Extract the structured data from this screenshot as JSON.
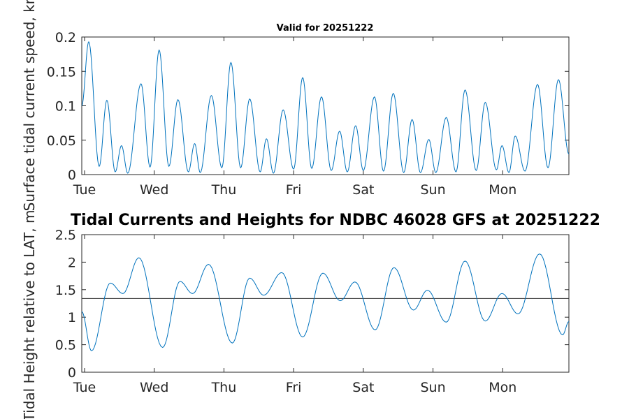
{
  "chart_data": [
    {
      "type": "line",
      "title": "Valid for 20251222",
      "xlabel": "",
      "ylabel": "Surface tidal current speed, kn",
      "x_tick_labels": [
        "Tue",
        "Wed",
        "Thu",
        "Fri",
        "Sat",
        "Sun",
        "Mon"
      ],
      "ylim": [
        0,
        0.2
      ],
      "y_ticks": [
        0,
        0.05,
        0.1,
        0.15,
        0.2
      ],
      "y_tick_labels": [
        "0",
        "0.05",
        "0.1",
        "0.15",
        "0.2"
      ],
      "xlim_days": [
        -0.04,
        6.95
      ],
      "series": [
        {
          "name": "speed",
          "color": "#0072BD",
          "extrema": [
            [
              -0.04,
              0.1
            ],
            [
              0.06,
              0.193
            ],
            [
              0.21,
              0.012
            ],
            [
              0.32,
              0.108
            ],
            [
              0.44,
              0.004
            ],
            [
              0.53,
              0.042
            ],
            [
              0.62,
              0.002
            ],
            [
              0.81,
              0.132
            ],
            [
              0.94,
              0.011
            ],
            [
              1.07,
              0.181
            ],
            [
              1.21,
              0.012
            ],
            [
              1.34,
              0.109
            ],
            [
              1.49,
              0.004
            ],
            [
              1.58,
              0.045
            ],
            [
              1.66,
              0.003
            ],
            [
              1.82,
              0.115
            ],
            [
              1.97,
              0.01
            ],
            [
              2.1,
              0.163
            ],
            [
              2.24,
              0.01
            ],
            [
              2.37,
              0.11
            ],
            [
              2.52,
              0.004
            ],
            [
              2.61,
              0.052
            ],
            [
              2.71,
              0.002
            ],
            [
              2.85,
              0.094
            ],
            [
              3.0,
              0.008
            ],
            [
              3.13,
              0.141
            ],
            [
              3.26,
              0.009
            ],
            [
              3.4,
              0.113
            ],
            [
              3.54,
              0.006
            ],
            [
              3.66,
              0.063
            ],
            [
              3.77,
              0.004
            ],
            [
              3.89,
              0.071
            ],
            [
              4.0,
              0.006
            ],
            [
              4.16,
              0.113
            ],
            [
              4.29,
              0.005
            ],
            [
              4.43,
              0.118
            ],
            [
              4.58,
              0.003
            ],
            [
              4.7,
              0.08
            ],
            [
              4.82,
              0.003
            ],
            [
              4.94,
              0.051
            ],
            [
              5.04,
              0.003
            ],
            [
              5.19,
              0.083
            ],
            [
              5.33,
              0.004
            ],
            [
              5.46,
              0.123
            ],
            [
              5.62,
              0.006
            ],
            [
              5.75,
              0.105
            ],
            [
              5.91,
              0.007
            ],
            [
              5.99,
              0.042
            ],
            [
              6.09,
              0.003
            ],
            [
              6.18,
              0.056
            ],
            [
              6.32,
              0.005
            ],
            [
              6.5,
              0.131
            ],
            [
              6.65,
              0.01
            ],
            [
              6.8,
              0.138
            ],
            [
              6.95,
              0.03
            ]
          ]
        }
      ]
    },
    {
      "type": "line",
      "title": "Tidal Currents and Heights for NDBC 46028 GFS at 20251222",
      "xlabel": "",
      "ylabel": "Tidal Height relative to LAT, m",
      "x_tick_labels": [
        "Tue",
        "Wed",
        "Thu",
        "Fri",
        "Sat",
        "Sun",
        "Mon"
      ],
      "ylim": [
        0,
        2.5
      ],
      "y_ticks": [
        0,
        0.5,
        1,
        1.5,
        2,
        2.5
      ],
      "y_tick_labels": [
        "0",
        "0.5",
        "1",
        "1.5",
        "2",
        "2.5"
      ],
      "xlim_days": [
        -0.04,
        6.95
      ],
      "reference_line": {
        "value": 1.34,
        "color": "#333333"
      },
      "series": [
        {
          "name": "height",
          "color": "#0072BD",
          "extrema": [
            [
              -0.04,
              1.1
            ],
            [
              0.1,
              0.39
            ],
            [
              0.37,
              1.62
            ],
            [
              0.55,
              1.43
            ],
            [
              0.78,
              2.08
            ],
            [
              1.12,
              0.45
            ],
            [
              1.37,
              1.65
            ],
            [
              1.55,
              1.43
            ],
            [
              1.78,
              1.96
            ],
            [
              2.12,
              0.53
            ],
            [
              2.37,
              1.71
            ],
            [
              2.57,
              1.4
            ],
            [
              2.83,
              1.81
            ],
            [
              3.13,
              0.64
            ],
            [
              3.42,
              1.8
            ],
            [
              3.67,
              1.3
            ],
            [
              3.88,
              1.64
            ],
            [
              4.17,
              0.77
            ],
            [
              4.44,
              1.9
            ],
            [
              4.72,
              1.13
            ],
            [
              4.92,
              1.49
            ],
            [
              5.19,
              0.91
            ],
            [
              5.46,
              2.02
            ],
            [
              5.75,
              0.93
            ],
            [
              5.99,
              1.43
            ],
            [
              6.22,
              1.06
            ],
            [
              6.53,
              2.15
            ],
            [
              6.86,
              0.68
            ],
            [
              6.95,
              0.92
            ]
          ]
        }
      ]
    }
  ]
}
